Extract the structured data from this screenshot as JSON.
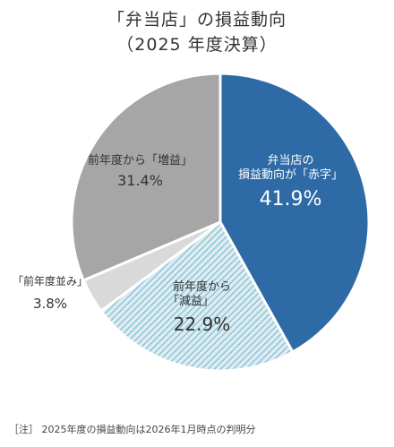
{
  "chart_data": {
    "type": "pie",
    "title": "「弁当店」の損益動向",
    "subtitle": "（2025 年度決算）",
    "slices": [
      {
        "label_lines": [
          "弁当店の",
          "損益動向が「赤字」"
        ],
        "value": 41.9,
        "value_label": "41.9%",
        "color": "#2e6aa5",
        "pattern": "solid"
      },
      {
        "label_lines": [
          "前年度から",
          "「減益」"
        ],
        "value": 22.9,
        "value_label": "22.9%",
        "color": "#dcecf2",
        "pattern": "diagonal-stripes",
        "stripe_color": "#78b8cd"
      },
      {
        "label_lines": [
          "「前年度並み」"
        ],
        "value": 3.8,
        "value_label": "3.8%",
        "color": "#d9d9d9",
        "pattern": "solid"
      },
      {
        "label_lines": [
          "前年度から「増益」"
        ],
        "value": 31.4,
        "value_label": "31.4%",
        "color": "#a6a6a6",
        "pattern": "solid"
      }
    ],
    "start": "12 o'clock",
    "direction": "clockwise"
  },
  "note": "［注］ 2025年度の損益動向は2026年1月時点の判明分"
}
